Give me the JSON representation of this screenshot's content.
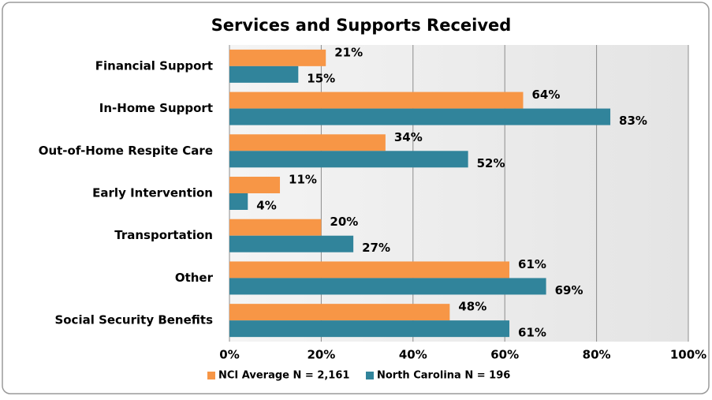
{
  "chart_data": {
    "type": "hbar",
    "title": "Services and Supports Received",
    "categories": [
      "Financial Support",
      "In-Home Support",
      "Out-of-Home Respite Care",
      "Early Intervention",
      "Transportation",
      "Other",
      "Social Security Benefits"
    ],
    "series": [
      {
        "name": "NCI Average N = 2,161",
        "color": "#f79646",
        "values": [
          21,
          64,
          34,
          11,
          20,
          61,
          48
        ],
        "value_labels": [
          "21%",
          "64%",
          "34%",
          "11%",
          "20%",
          "61%",
          "48%"
        ]
      },
      {
        "name": "North Carolina N = 196",
        "color": "#31849b",
        "values": [
          15,
          83,
          52,
          4,
          27,
          69,
          61
        ],
        "value_labels": [
          "15%",
          "83%",
          "52%",
          "4%",
          "27%",
          "69%",
          "61%"
        ]
      }
    ],
    "xlim": [
      0,
      100
    ],
    "xticks": [
      {
        "value": 0,
        "label": "0%"
      },
      {
        "value": 20,
        "label": "20%"
      },
      {
        "value": 40,
        "label": "40%"
      },
      {
        "value": 60,
        "label": "60%"
      },
      {
        "value": 80,
        "label": "80%"
      },
      {
        "value": 100,
        "label": "100%"
      }
    ],
    "grid": true,
    "legend": "bottom"
  }
}
